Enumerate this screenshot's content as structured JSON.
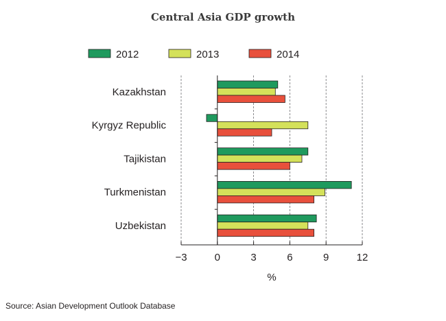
{
  "chart_data": {
    "type": "bar",
    "orientation": "horizontal",
    "title": "Central Asia GDP growth",
    "xlabel": "%",
    "ylabel": "",
    "xlim": [
      -3,
      12
    ],
    "xticks": [
      -3,
      0,
      3,
      6,
      9,
      12
    ],
    "xtick_labels": [
      "−3",
      "0",
      "3",
      "6",
      "9",
      "12"
    ],
    "grid": "vertical dashed at each x tick",
    "legend_position": "top",
    "categories": [
      "Kazakhstan",
      "Kyrgyz Republic",
      "Tajikistan",
      "Turkmenistan",
      "Uzbekistan"
    ],
    "series": [
      {
        "name": "2012",
        "color": "#1f9a5e",
        "values": [
          5.0,
          -0.9,
          7.5,
          11.1,
          8.2
        ]
      },
      {
        "name": "2013",
        "color": "#d4e15a",
        "values": [
          4.8,
          7.5,
          7.0,
          8.9,
          7.5
        ]
      },
      {
        "name": "2014",
        "color": "#e8503c",
        "values": [
          5.6,
          4.5,
          6.0,
          8.0,
          8.0
        ]
      }
    ],
    "source": "Source: Asian Development Outlook Database"
  }
}
